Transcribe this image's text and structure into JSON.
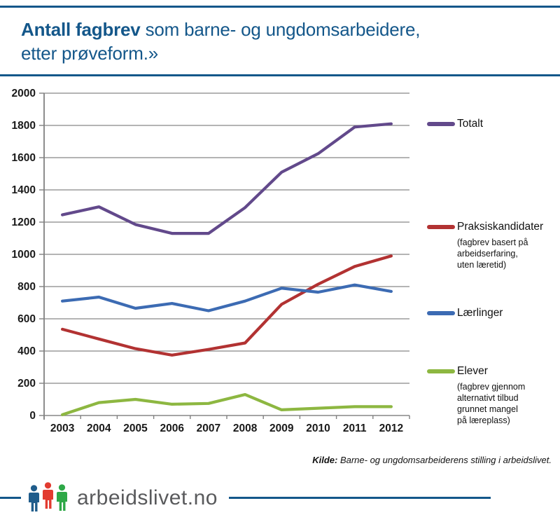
{
  "header": {
    "title_bold": "Antall fagbrev",
    "title_regular": " som barne- og ungdomsarbeidere,",
    "title_line2": "etter prøveform.»",
    "accent_color": "#14578A"
  },
  "chart_data": {
    "type": "line",
    "title": "Antall fagbrev som barne- og ungdomsarbeidere, etter prøveform.»",
    "x": [
      2003,
      2004,
      2005,
      2006,
      2007,
      2008,
      2009,
      2010,
      2011,
      2012
    ],
    "series": [
      {
        "name": "Totalt",
        "color": "#62498B",
        "note": "",
        "values": [
          1245,
          1295,
          1185,
          1130,
          1130,
          1290,
          1510,
          1625,
          1790,
          1810
        ]
      },
      {
        "name": "Praksiskandidater",
        "color": "#B23232",
        "note": "(fagbrev basert på\narbeidserfaring,\nuten læretid)",
        "values": [
          535,
          475,
          415,
          375,
          410,
          450,
          690,
          815,
          925,
          990
        ]
      },
      {
        "name": "Lærlinger",
        "color": "#3C6BB3",
        "note": "",
        "values": [
          710,
          735,
          665,
          695,
          650,
          710,
          790,
          765,
          810,
          770
        ]
      },
      {
        "name": "Elever",
        "color": "#8DB741",
        "note": "(fagbrev gjennom\nalternativt tilbud\ngrunnet mangel\npå læreplass)",
        "values": [
          5,
          80,
          100,
          70,
          75,
          130,
          35,
          45,
          55,
          55
        ]
      }
    ],
    "ylim": [
      0,
      2000
    ],
    "ytick_step": 200,
    "grid": true,
    "legend_position": "right",
    "axis_color": "#808080",
    "grid_color": "#878787",
    "tick_label_color": "#1A1A1A"
  },
  "source": {
    "label": "Kilde:",
    "text": " Barne- og ungdomsarbeiderens stilling i arbeidslivet."
  },
  "footer": {
    "brand": "arbeidslivet.no",
    "icon_colors": {
      "person_blue": "#1F5C8B",
      "person_red": "#E23B30",
      "person_green": "#2EA847"
    },
    "line_color": "#14578A"
  }
}
